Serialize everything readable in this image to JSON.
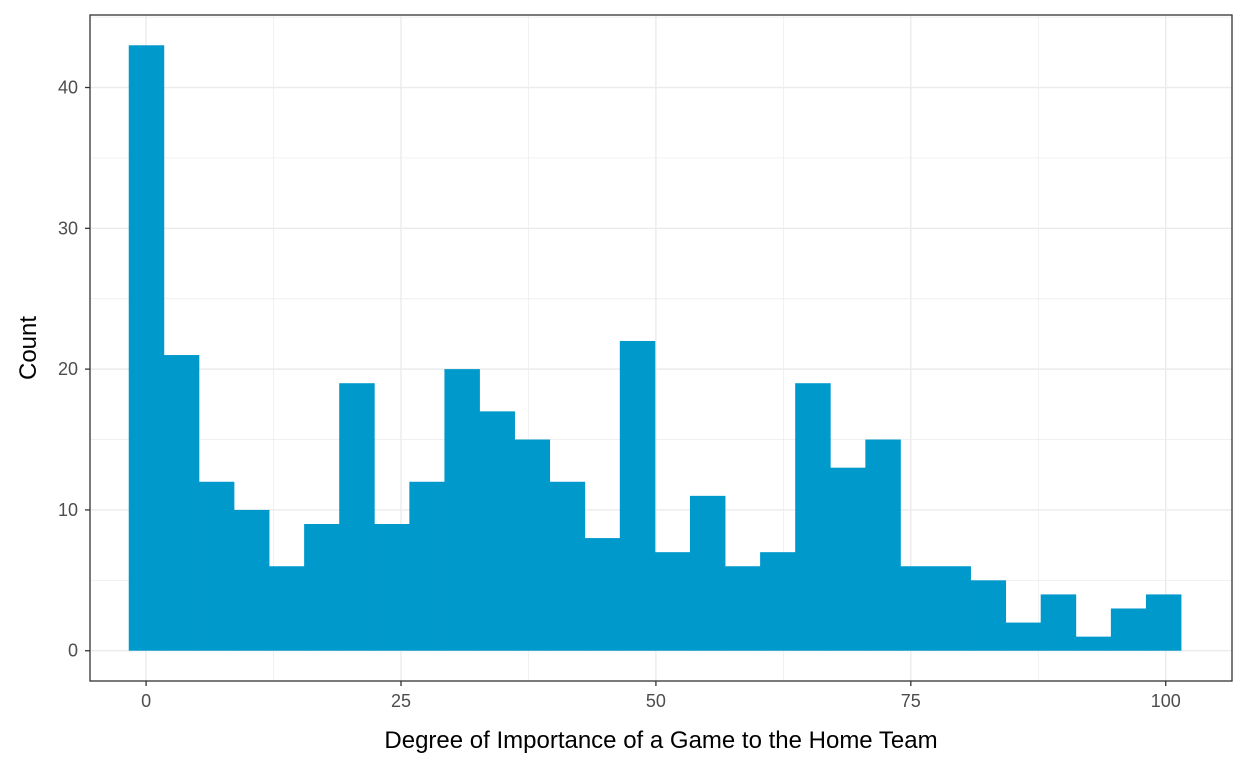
{
  "chart_data": {
    "type": "bar",
    "subtype": "histogram",
    "title": "",
    "xlabel": "Degree of Importance of a Game to the Home Team",
    "ylabel": "Count",
    "xlim": [
      -5.5,
      106.5
    ],
    "ylim": [
      -2.15,
      45.15
    ],
    "x_ticks": [
      0,
      25,
      50,
      75,
      100
    ],
    "y_ticks": [
      0,
      10,
      20,
      30,
      40
    ],
    "grid": true,
    "legend": "none",
    "bar_color": "#0099CC",
    "bins": [
      {
        "x0": -1.7,
        "x1": 1.74,
        "count": 43
      },
      {
        "x0": 1.74,
        "x1": 5.18,
        "count": 21
      },
      {
        "x0": 5.18,
        "x1": 8.62,
        "count": 12
      },
      {
        "x0": 8.62,
        "x1": 12.06,
        "count": 10
      },
      {
        "x0": 12.06,
        "x1": 15.5,
        "count": 6
      },
      {
        "x0": 15.5,
        "x1": 18.94,
        "count": 9
      },
      {
        "x0": 18.94,
        "x1": 22.38,
        "count": 19
      },
      {
        "x0": 22.38,
        "x1": 25.82,
        "count": 9
      },
      {
        "x0": 25.82,
        "x1": 29.26,
        "count": 12
      },
      {
        "x0": 29.26,
        "x1": 32.7,
        "count": 20
      },
      {
        "x0": 32.7,
        "x1": 36.14,
        "count": 17
      },
      {
        "x0": 36.14,
        "x1": 39.58,
        "count": 15
      },
      {
        "x0": 39.58,
        "x1": 43.02,
        "count": 12
      },
      {
        "x0": 43.02,
        "x1": 46.46,
        "count": 8
      },
      {
        "x0": 46.46,
        "x1": 49.9,
        "count": 22
      },
      {
        "x0": 49.9,
        "x1": 53.34,
        "count": 7
      },
      {
        "x0": 53.34,
        "x1": 56.78,
        "count": 11
      },
      {
        "x0": 56.78,
        "x1": 60.22,
        "count": 6
      },
      {
        "x0": 60.22,
        "x1": 63.66,
        "count": 7
      },
      {
        "x0": 63.66,
        "x1": 67.1,
        "count": 19
      },
      {
        "x0": 67.1,
        "x1": 70.54,
        "count": 13
      },
      {
        "x0": 70.54,
        "x1": 73.98,
        "count": 15
      },
      {
        "x0": 73.98,
        "x1": 77.42,
        "count": 6
      },
      {
        "x0": 77.42,
        "x1": 80.86,
        "count": 6
      },
      {
        "x0": 80.86,
        "x1": 84.3,
        "count": 5
      },
      {
        "x0": 84.3,
        "x1": 87.74,
        "count": 2
      },
      {
        "x0": 87.74,
        "x1": 91.18,
        "count": 4
      },
      {
        "x0": 91.18,
        "x1": 94.62,
        "count": 1
      },
      {
        "x0": 94.62,
        "x1": 98.06,
        "count": 3
      },
      {
        "x0": 98.06,
        "x1": 101.5,
        "count": 4
      }
    ]
  }
}
